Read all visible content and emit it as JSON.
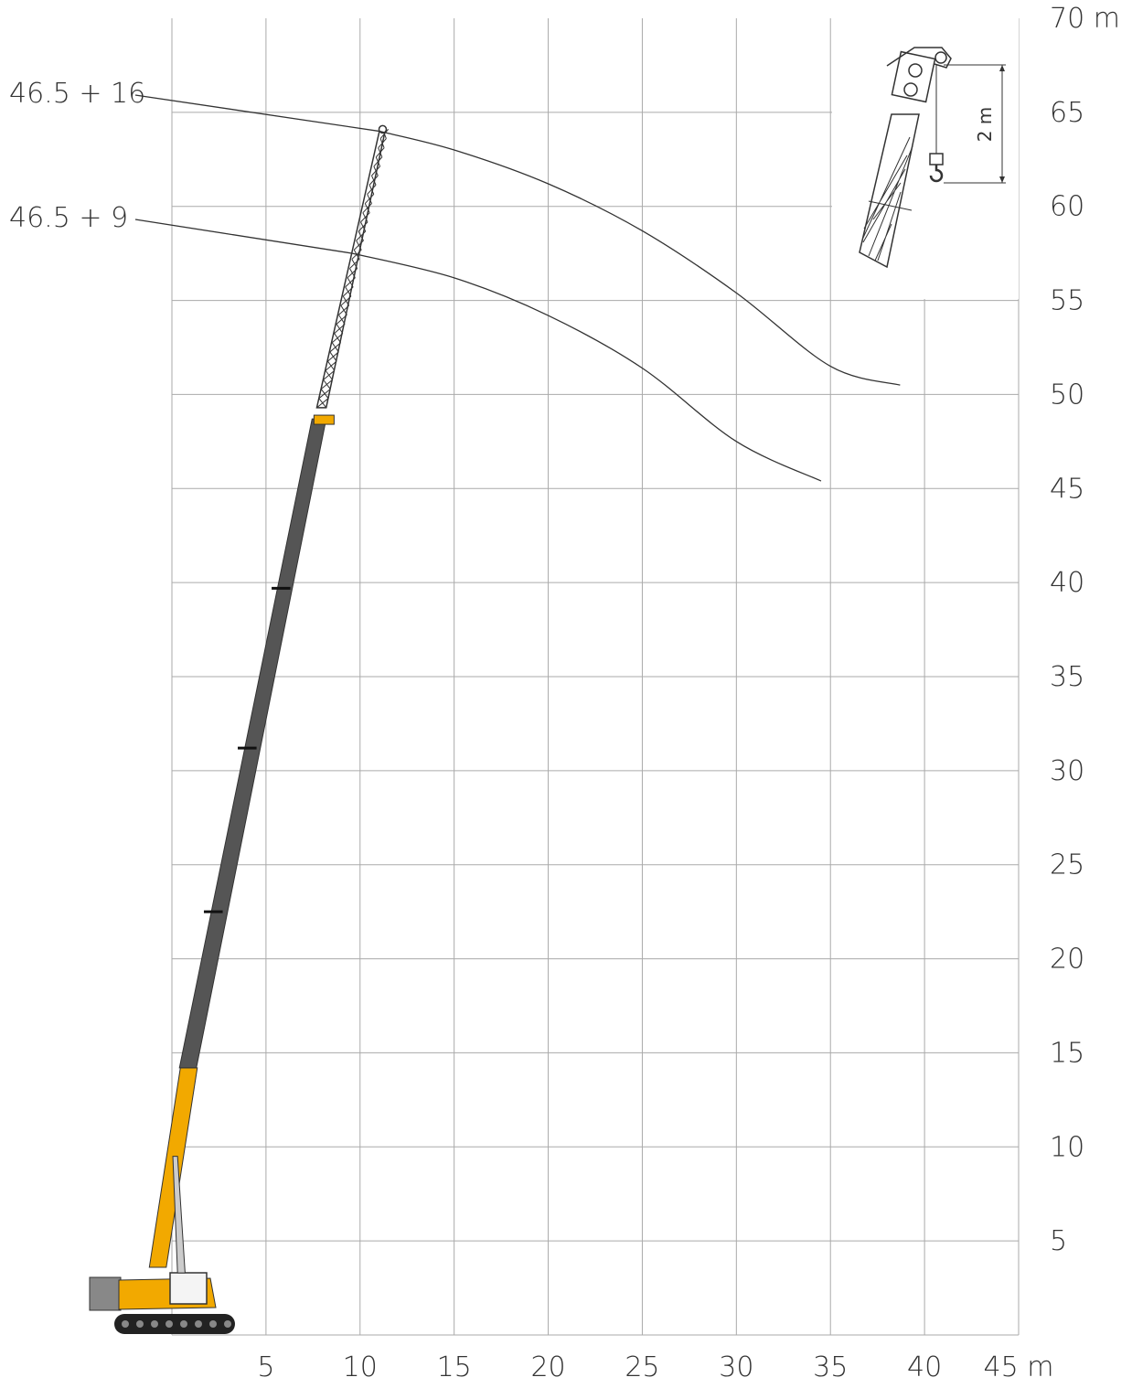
{
  "chart_data": {
    "type": "line",
    "title": "",
    "xlabel": "",
    "ylabel": "",
    "x_unit": "m",
    "y_unit": "m",
    "xlim": [
      0,
      45
    ],
    "ylim": [
      0,
      70
    ],
    "x_ticks": [
      5,
      10,
      15,
      20,
      25,
      30,
      35,
      40,
      45
    ],
    "x_tick_labels": [
      "5",
      "10",
      "15",
      "20",
      "25",
      "30",
      "35",
      "40",
      "45 m"
    ],
    "y_ticks": [
      5,
      10,
      15,
      20,
      25,
      30,
      35,
      40,
      45,
      50,
      55,
      60,
      65,
      70
    ],
    "y_tick_labels": [
      "5",
      "10",
      "15",
      "20",
      "25",
      "30",
      "35",
      "40",
      "45",
      "50",
      "55",
      "60",
      "65",
      "70 m"
    ],
    "grid": true,
    "series": [
      {
        "name": "46.5 + 16",
        "x": [
          11,
          15,
          20,
          25,
          30,
          35,
          38.7
        ],
        "y": [
          64.0,
          63.0,
          61.2,
          58.7,
          55.4,
          51.5,
          50.5
        ]
      },
      {
        "name": "46.5 + 9",
        "x": [
          9.6,
          15,
          20,
          25,
          30,
          34.5
        ],
        "y": [
          57.5,
          56.2,
          54.2,
          51.4,
          47.5,
          45.4
        ]
      }
    ],
    "inset": {
      "description_label": "2 m"
    },
    "colors": {
      "grid": "#aaaaaa",
      "curve": "#333333",
      "boom_base": "#f2a900",
      "boom_telescopic": "#555555",
      "jib": "#333333",
      "text": "#333333"
    }
  }
}
